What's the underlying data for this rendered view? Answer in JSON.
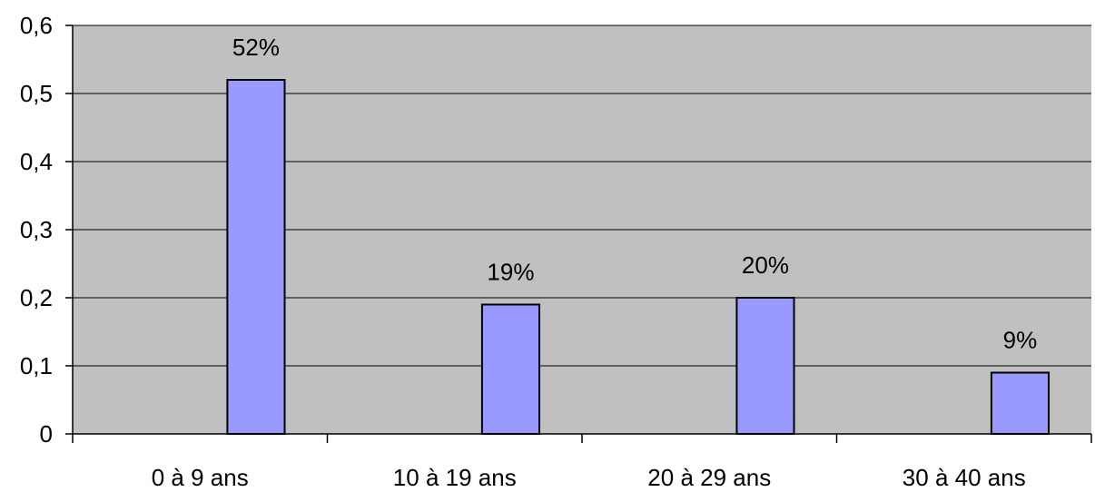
{
  "chart_data": {
    "type": "bar",
    "categories": [
      "0 à 9 ans",
      "10 à 19 ans",
      "20 à 29 ans",
      "30 à 40 ans"
    ],
    "values": [
      0.52,
      0.19,
      0.2,
      0.09
    ],
    "data_labels": [
      "52%",
      "19%",
      "20%",
      "9%"
    ],
    "y_ticks": [
      0,
      0.1,
      0.2,
      0.3,
      0.4,
      0.5,
      0.6
    ],
    "y_tick_labels": [
      "0",
      "0,1",
      "0,2",
      "0,3",
      "0,4",
      "0,5",
      "0,6"
    ],
    "ylim": [
      0,
      0.6
    ],
    "grid": true,
    "legend": false,
    "colors": {
      "plot_background": "#c0c0c0",
      "bar_fill": "#9999ff",
      "bar_stroke": "#000000",
      "gridline": "#000000"
    }
  }
}
